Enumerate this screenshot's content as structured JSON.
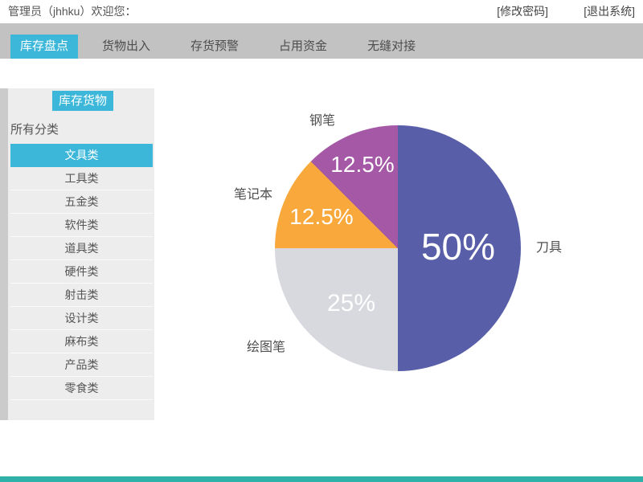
{
  "header": {
    "welcome": "管理员（jhhku）欢迎您：",
    "change_password": "[修改密码]",
    "logout": "[退出系统]"
  },
  "nav": {
    "tabs": [
      "库存盘点",
      "货物出入",
      "存货预警",
      "占用资金",
      "无缝对接"
    ],
    "active_tab": "库存盘点"
  },
  "sidebar": {
    "title": "库存货物",
    "filter_label": "所有分类",
    "selected_category": "文具类",
    "categories": [
      "文具类",
      "工具类",
      "五金类",
      "软件类",
      "道具类",
      "硬件类",
      "射击类",
      "设计类",
      "麻布类",
      "产品类",
      "零食类"
    ]
  },
  "chart_data": {
    "type": "pie",
    "title": "",
    "start_angle_deg": 0,
    "direction": "clockwise",
    "slices": [
      {
        "label": "刀具",
        "value_pct": 50,
        "display": "50%",
        "color": "#585ea7"
      },
      {
        "label": "绘图笔",
        "value_pct": 25,
        "display": "25%",
        "color": "#d8d8df"
      },
      {
        "label": "笔记本",
        "value_pct": 12.5,
        "display": "12.5%",
        "color": "#f9a83c"
      },
      {
        "label": "钢笔",
        "value_pct": 12.5,
        "display": "12.5%",
        "color": "#a458a6"
      }
    ]
  },
  "colors": {
    "accent_cyan": "#3cb7d9",
    "nav_gray": "#c2c2c2",
    "sidebar_bg": "#ededed",
    "footer_teal": "#2fb0a8",
    "text_dark": "#555555"
  }
}
